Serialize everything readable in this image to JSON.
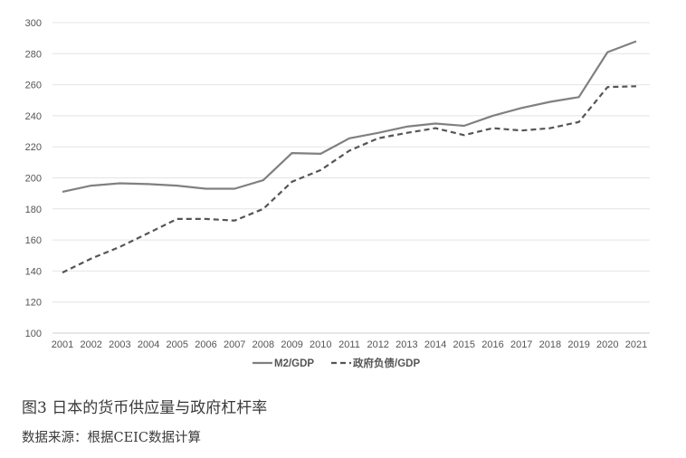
{
  "chart_data": {
    "type": "line",
    "x": [
      "2001",
      "2002",
      "2003",
      "2004",
      "2005",
      "2006",
      "2007",
      "2008",
      "2009",
      "2010",
      "2011",
      "2012",
      "2013",
      "2014",
      "2015",
      "2016",
      "2017",
      "2018",
      "2019",
      "2020",
      "2021"
    ],
    "series": [
      {
        "name": "M2/GDP",
        "style": "solid",
        "color": "#808080",
        "values": [
          191,
          195,
          196.5,
          196,
          195,
          193,
          193,
          198.5,
          216,
          215.5,
          225.5,
          229,
          233,
          235,
          233.5,
          240,
          245,
          249,
          252,
          281,
          288
        ]
      },
      {
        "name": "政府负债/GDP",
        "style": "dashed",
        "color": "#555555",
        "values": [
          139,
          148,
          155.5,
          164.5,
          173.5,
          173.5,
          172.5,
          180,
          197.5,
          205,
          217.5,
          225.5,
          229,
          232,
          227.5,
          232,
          230.5,
          232,
          236,
          258.5,
          259
        ]
      }
    ],
    "ylim": [
      100,
      300
    ],
    "yticks": [
      "100",
      "120",
      "140",
      "160",
      "180",
      "200",
      "220",
      "240",
      "260",
      "280",
      "300"
    ],
    "grid": "horizontal",
    "legend_position": "bottom-center",
    "title": "",
    "xlabel": "",
    "ylabel": ""
  },
  "caption": "图3 日本的货币供应量与政府杠杆率",
  "source": "数据来源：根据CEIC数据计算"
}
